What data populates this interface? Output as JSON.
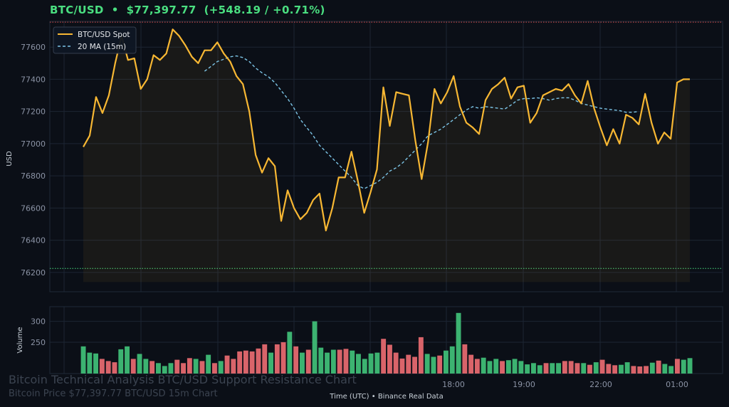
{
  "header": {
    "symbol": "BTC/USD",
    "separator": "•",
    "price": "$77,397.77",
    "change": "(+548.19 / +0.71%)"
  },
  "watermark": {
    "title": "Bitcoin Technical Analysis BTC/USD Support Resistance Chart",
    "subtitle": "Bitcoin Price $77,397.77 BTC/USD 15m Chart"
  },
  "colors": {
    "background": "#0b0f17",
    "spot_line": "#f7b733",
    "ma_line": "#7cc4e6",
    "volume_up": "#3cb371",
    "volume_down": "#d9646a",
    "resistance_line": "#e05252",
    "support_line": "#4ade80",
    "header_text": "#4ade80"
  },
  "chart_data": [
    {
      "type": "line",
      "title": "",
      "xlabel": "Time (UTC)  •  Binance Real Data",
      "ylabel": "USD",
      "x_tick_labels": [
        "18:00",
        "19:00",
        "22:00",
        "01:00"
      ],
      "ylim": [
        76080,
        77760
      ],
      "yticks": [
        76200,
        76400,
        76600,
        76800,
        77000,
        77200,
        77400,
        77600
      ],
      "grid": true,
      "legend_position": "top-left",
      "horizontal_levels": [
        {
          "kind": "resistance",
          "value": 77755
        },
        {
          "kind": "support",
          "value": 76225
        }
      ],
      "series": [
        {
          "name": "BTC/USD Spot",
          "values": [
            76980,
            77050,
            77290,
            77190,
            77300,
            77500,
            77670,
            77520,
            77530,
            77340,
            77400,
            77550,
            77520,
            77560,
            77710,
            77670,
            77610,
            77540,
            77500,
            77580,
            77580,
            77630,
            77560,
            77510,
            77420,
            77370,
            77200,
            76930,
            76820,
            76910,
            76860,
            76520,
            76710,
            76600,
            76530,
            76570,
            76650,
            76690,
            76460,
            76600,
            76790,
            76790,
            76950,
            76770,
            76570,
            76700,
            76840,
            77350,
            77110,
            77320,
            77310,
            77300,
            77020,
            76780,
            77010,
            77340,
            77250,
            77320,
            77420,
            77230,
            77130,
            77100,
            77060,
            77270,
            77340,
            77370,
            77410,
            77280,
            77350,
            77360,
            77130,
            77190,
            77300,
            77320,
            77340,
            77330,
            77370,
            77300,
            77250,
            77390,
            77220,
            77100,
            76990,
            77090,
            77000,
            77180,
            77160,
            77120,
            77310,
            77130,
            77000,
            77070,
            77030,
            77380,
            77400,
            77400
          ]
        },
        {
          "name": "20 MA (15m)",
          "start_index": 19,
          "values": [
            77450,
            77480,
            77510,
            77525,
            77540,
            77545,
            77535,
            77510,
            77470,
            77440,
            77415,
            77380,
            77330,
            77280,
            77220,
            77150,
            77100,
            77050,
            76990,
            76950,
            76910,
            76870,
            76830,
            76790,
            76740,
            76720,
            76740,
            76760,
            76790,
            76830,
            76850,
            76880,
            76920,
            76960,
            77000,
            77050,
            77070,
            77090,
            77120,
            77150,
            77180,
            77210,
            77230,
            77220,
            77230,
            77225,
            77220,
            77215,
            77240,
            77270,
            77280,
            77280,
            77285,
            77280,
            77270,
            77280,
            77285,
            77285,
            77270,
            77250,
            77240,
            77230,
            77220,
            77215,
            77210,
            77205,
            77195,
            77195,
            77200
          ]
        }
      ]
    },
    {
      "type": "bar",
      "title": "",
      "xlabel": "",
      "ylabel": "Volume",
      "ylim": [
        175,
        335
      ],
      "yticks": [
        250,
        300
      ],
      "grid": true,
      "series": [
        {
          "name": "",
          "values": [
            240,
            225,
            223,
            210,
            205,
            202,
            233,
            240,
            210,
            222,
            210,
            205,
            200,
            193,
            200,
            208,
            200,
            212,
            210,
            205,
            220,
            200,
            205,
            218,
            210,
            228,
            230,
            228,
            235,
            245,
            225,
            245,
            250,
            275,
            240,
            225,
            232,
            300,
            237,
            225,
            232,
            232,
            234,
            230,
            222,
            210,
            223,
            225,
            258,
            244,
            225,
            211,
            220,
            215,
            262,
            222,
            215,
            218,
            230,
            240,
            320,
            245,
            220,
            210,
            213,
            205,
            210,
            205,
            207,
            210,
            205,
            197,
            200,
            195,
            200,
            200,
            200,
            205,
            205,
            200,
            200,
            196,
            202,
            208,
            198,
            195,
            196,
            202,
            193,
            192,
            193,
            201,
            206,
            198,
            193,
            210,
            208,
            212
          ],
          "direction": [
            "up",
            "up",
            "up",
            "down",
            "down",
            "down",
            "up",
            "up",
            "down",
            "up",
            "up",
            "down",
            "up",
            "up",
            "up",
            "down",
            "down",
            "down",
            "up",
            "down",
            "up",
            "down",
            "up",
            "down",
            "down",
            "down",
            "down",
            "down",
            "down",
            "down",
            "up",
            "down",
            "down",
            "up",
            "down",
            "up",
            "down",
            "up",
            "up",
            "up",
            "up",
            "down",
            "down",
            "up",
            "up",
            "up",
            "up",
            "up",
            "down",
            "down",
            "down",
            "down",
            "down",
            "down",
            "down",
            "up",
            "up",
            "down",
            "up",
            "up",
            "up",
            "down",
            "down",
            "down",
            "up",
            "up",
            "up",
            "down",
            "up",
            "up",
            "up",
            "up",
            "up",
            "up",
            "down",
            "up",
            "up",
            "down",
            "down",
            "down",
            "up",
            "down",
            "up",
            "down",
            "down",
            "down",
            "up",
            "up",
            "down",
            "down",
            "down",
            "up",
            "down",
            "up",
            "up",
            "down",
            "up",
            "up"
          ]
        }
      ]
    }
  ]
}
